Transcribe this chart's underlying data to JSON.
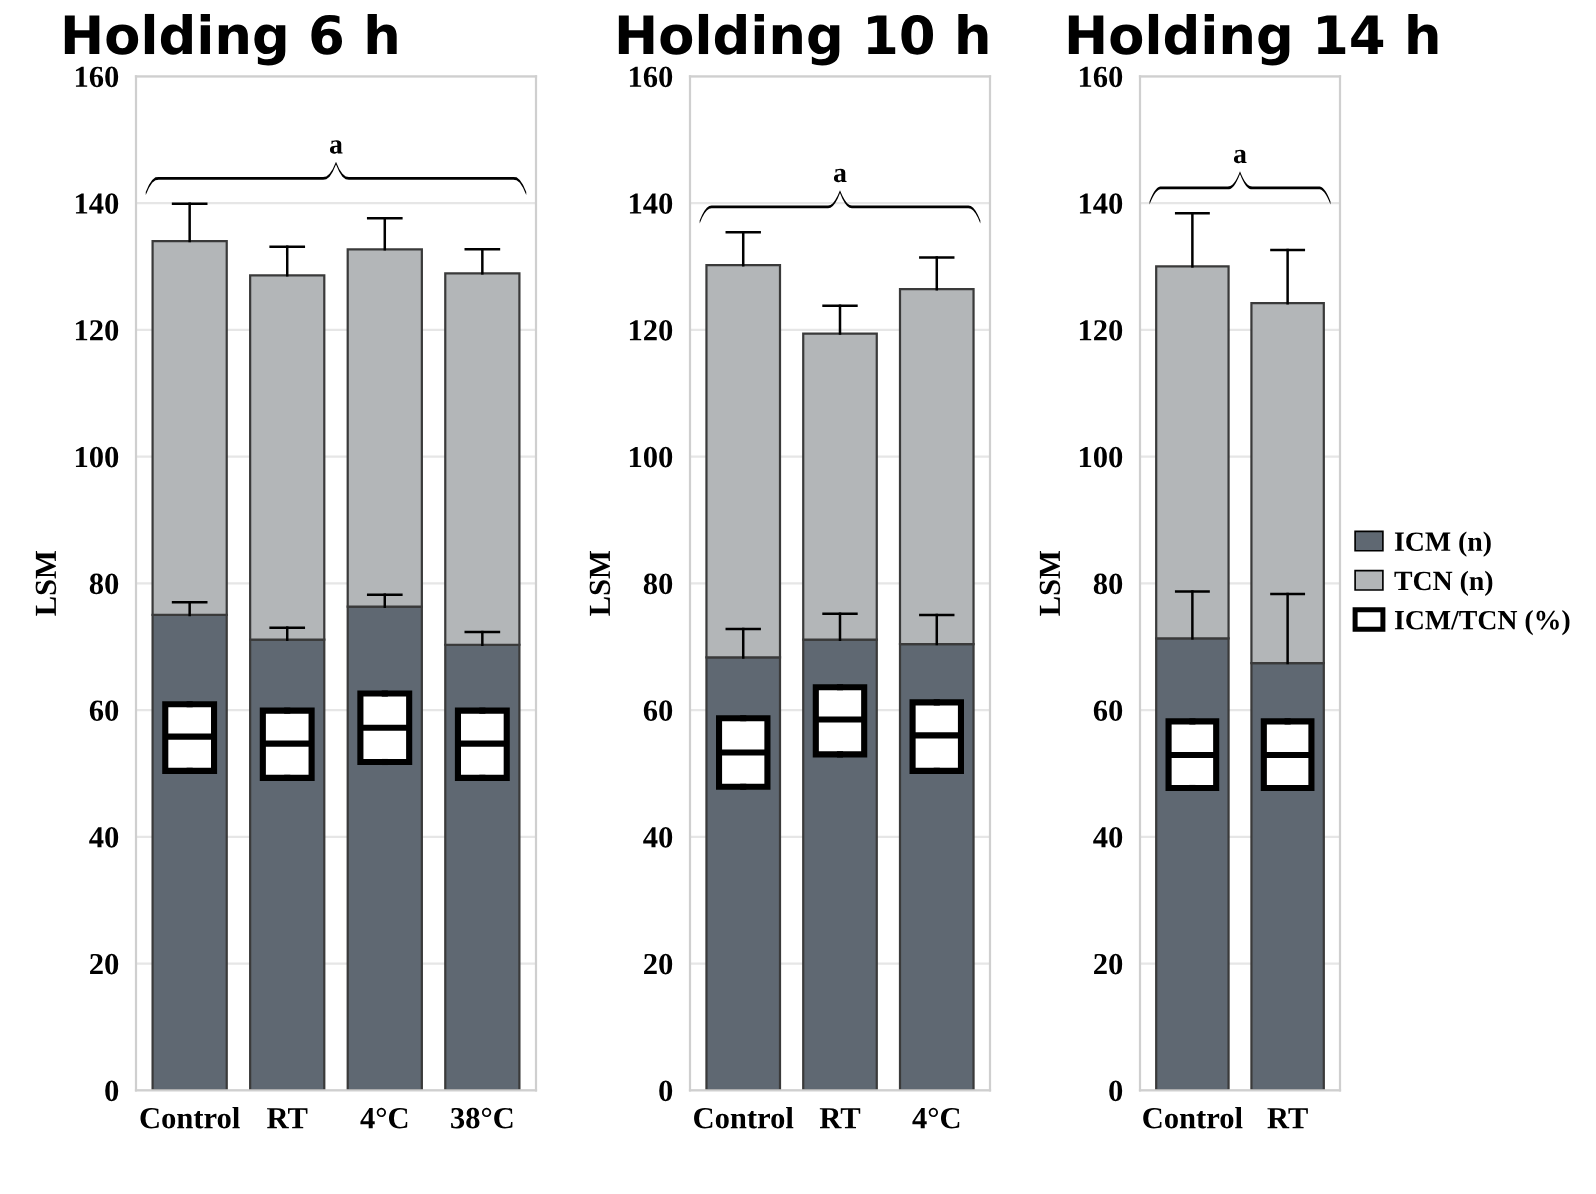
{
  "chart_data": [
    {
      "type": "bar",
      "title": "Holding 6 h",
      "ylabel": "LSM",
      "stacked": true,
      "categories": [
        "Control",
        "RT",
        "4°C",
        "38°C"
      ],
      "ylim": [
        0,
        160
      ],
      "yticks": [
        0,
        20,
        40,
        60,
        80,
        100,
        120,
        140,
        160
      ],
      "grid": "y",
      "annotations": [
        "a"
      ],
      "series": [
        {
          "color": "#5f6872",
          "values": [
            75.0,
            71.1,
            76.3,
            70.3
          ],
          "errors": [
            [
              75.0,
              77.0
            ],
            [
              71.1,
              73.0
            ],
            [
              76.3,
              78.2
            ],
            [
              70.3,
              72.3
            ]
          ]
        },
        {
          "color": "#b3b6b8",
          "values": [
            59.0,
            57.5,
            56.4,
            58.6
          ],
          "errors": [
            [
              134.0,
              139.9
            ],
            [
              128.6,
              133.1
            ],
            [
              132.7,
              137.6
            ],
            [
              128.9,
              132.7
            ]
          ]
        },
        {
          "type": "box",
          "color": "#ffffff",
          "boxes": [
            {
              "low": 50.4,
              "q1": 50.4,
              "median": 55.8,
              "q3": 60.9,
              "high": 60.9
            },
            {
              "low": 49.3,
              "q1": 49.3,
              "median": 54.7,
              "q3": 59.9,
              "high": 59.9
            },
            {
              "low": 51.8,
              "q1": 51.8,
              "median": 57.2,
              "q3": 62.6,
              "high": 62.6
            },
            {
              "low": 49.3,
              "q1": 49.3,
              "median": 54.7,
              "q3": 59.9,
              "high": 59.9
            }
          ]
        }
      ]
    },
    {
      "type": "bar",
      "title": "Holding 10 h",
      "ylabel": "LSM",
      "stacked": true,
      "categories": [
        "Control",
        "RT",
        "4°C"
      ],
      "ylim": [
        0,
        160
      ],
      "yticks": [
        0,
        20,
        40,
        60,
        80,
        100,
        120,
        140,
        160
      ],
      "grid": "y",
      "annotations": [
        "a"
      ],
      "series": [
        {
          "color": "#5f6872",
          "values": [
            68.3,
            71.1,
            70.4
          ],
          "errors": [
            [
              68.3,
              72.8
            ],
            [
              71.1,
              75.2
            ],
            [
              70.4,
              75.0
            ]
          ]
        },
        {
          "color": "#b3b6b8",
          "values": [
            61.9,
            48.3,
            56.0
          ],
          "errors": [
            [
              130.2,
              135.4
            ],
            [
              119.4,
              123.8
            ],
            [
              126.4,
              131.4
            ]
          ]
        },
        {
          "type": "box",
          "color": "#ffffff",
          "boxes": [
            {
              "low": 47.9,
              "q1": 47.9,
              "median": 53.3,
              "q3": 58.7,
              "high": 58.7
            },
            {
              "low": 53.0,
              "q1": 53.0,
              "median": 58.5,
              "q3": 63.6,
              "high": 63.6
            },
            {
              "low": 50.4,
              "q1": 50.4,
              "median": 56.0,
              "q3": 61.2,
              "high": 61.2
            }
          ]
        }
      ]
    },
    {
      "type": "bar",
      "title": "Holding 14 h",
      "ylabel": "LSM",
      "stacked": true,
      "categories": [
        "Control",
        "RT"
      ],
      "ylim": [
        0,
        160
      ],
      "yticks": [
        0,
        20,
        40,
        60,
        80,
        100,
        120,
        140,
        160
      ],
      "grid": "y",
      "annotations": [
        "a"
      ],
      "legend": "right",
      "series": [
        {
          "name": "ICM (n)",
          "color": "#5f6872",
          "values": [
            71.3,
            67.4
          ],
          "errors": [
            [
              71.3,
              78.7
            ],
            [
              67.4,
              78.3
            ]
          ]
        },
        {
          "name": "TCN (n)",
          "color": "#b3b6b8",
          "values": [
            58.7,
            56.8
          ],
          "errors": [
            [
              130.0,
              138.4
            ],
            [
              124.2,
              132.6
            ]
          ]
        },
        {
          "name": "ICM/TCN (%)",
          "type": "box",
          "color": "#ffffff",
          "boxes": [
            {
              "low": 47.7,
              "q1": 47.7,
              "median": 52.9,
              "q3": 58.2,
              "high": 58.2
            },
            {
              "low": 47.7,
              "q1": 47.7,
              "median": 52.9,
              "q3": 58.2,
              "high": 58.2
            }
          ]
        }
      ]
    }
  ]
}
